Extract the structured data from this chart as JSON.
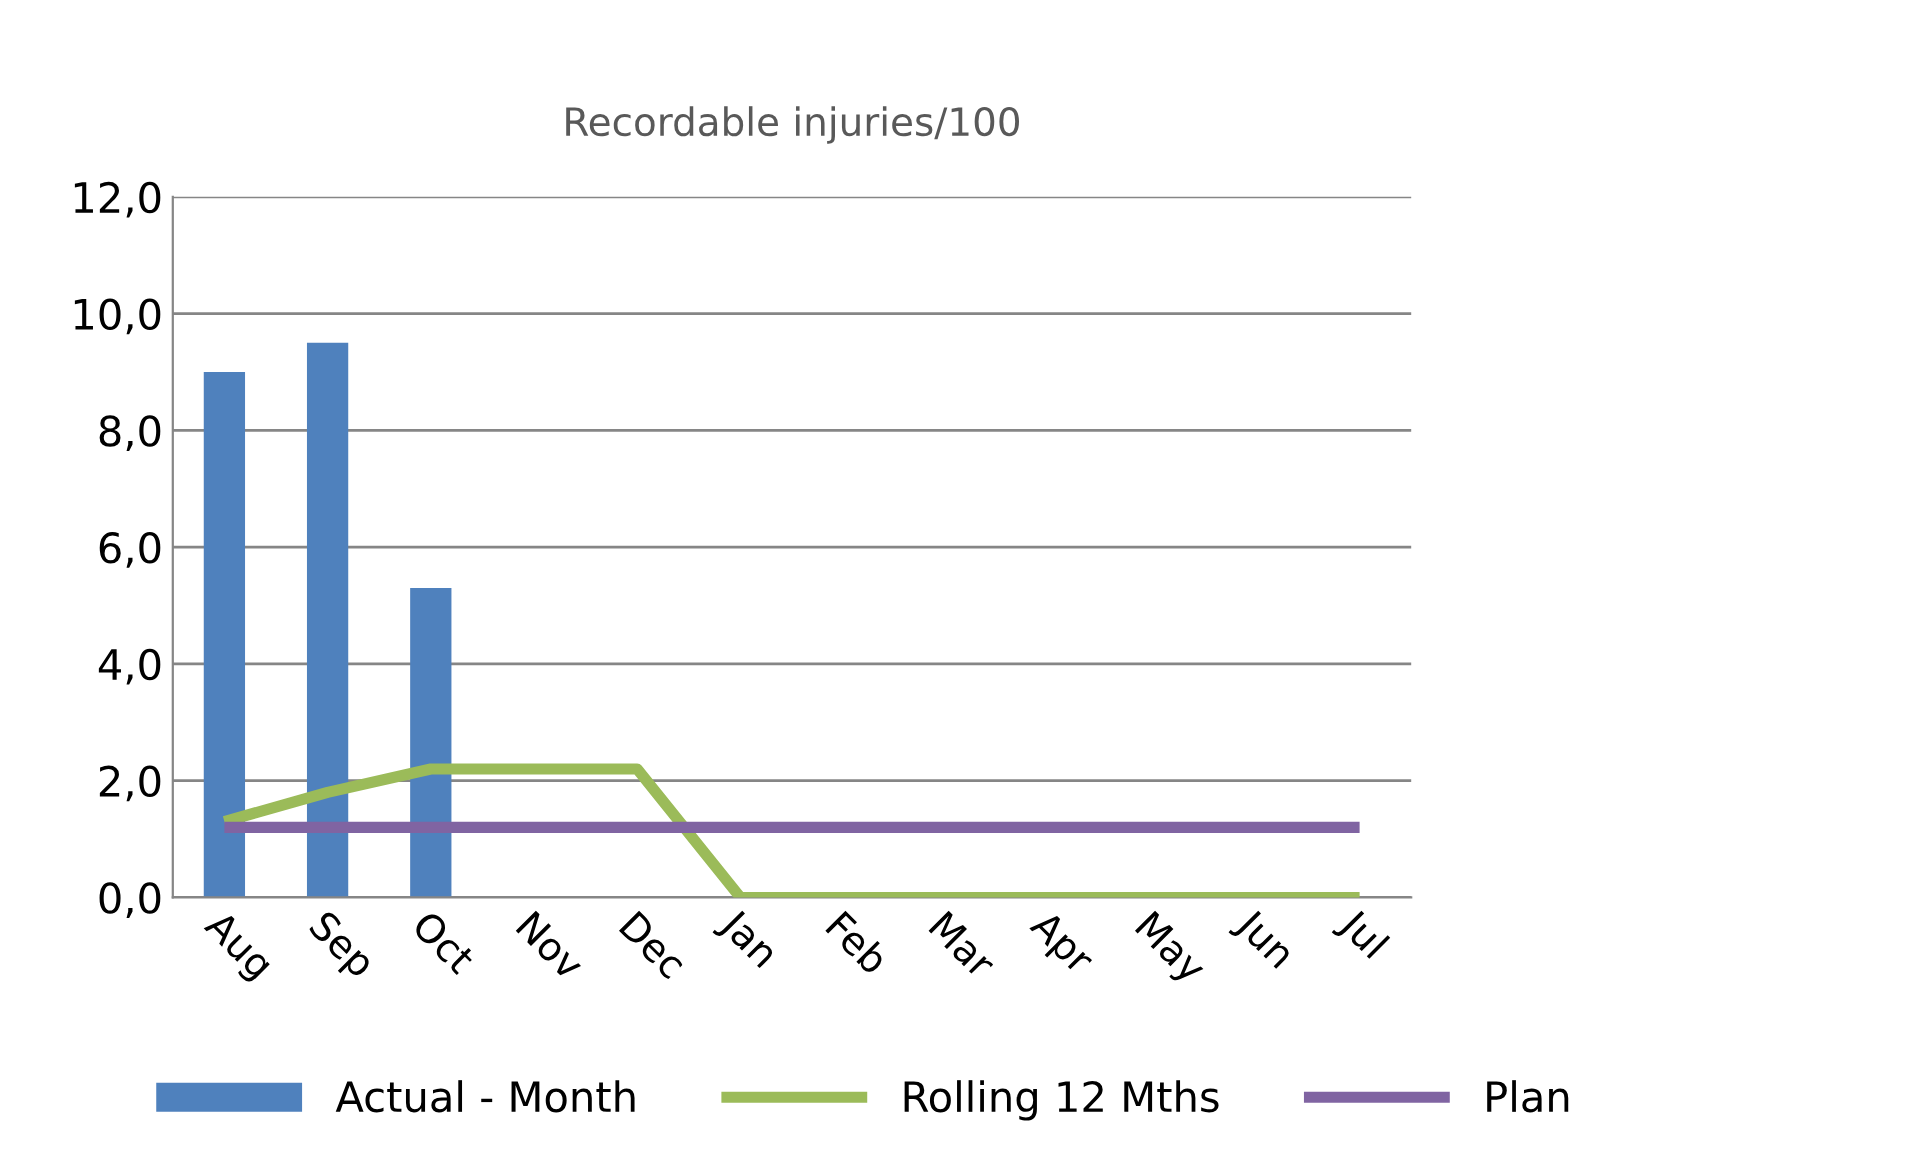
{
  "chart_data": {
    "type": "bar",
    "title": "Recordable injuries/100",
    "categories": [
      "Aug",
      "Sep",
      "Oct",
      "Nov",
      "Dec",
      "Jan",
      "Feb",
      "Mar",
      "Apr",
      "May",
      "Jun",
      "Jul"
    ],
    "series": [
      {
        "name": "Actual - Month",
        "color": "#4f81bd",
        "values": [
          9.0,
          9.5,
          5.3,
          null,
          null,
          null,
          null,
          null,
          null,
          null,
          null,
          null
        ]
      },
      {
        "name": "Rolling 12 Mths",
        "type": "line",
        "color": "#9bbb59",
        "values": [
          1.3,
          1.8,
          2.2,
          2.2,
          2.2,
          0,
          0,
          0,
          0,
          0,
          0,
          0
        ]
      },
      {
        "name": "Plan",
        "type": "line",
        "color": "#8064a2",
        "values": [
          1.2,
          1.2,
          1.2,
          1.2,
          1.2,
          1.2,
          1.2,
          1.2,
          1.2,
          1.2,
          1.2,
          1.2
        ]
      }
    ],
    "ylim": [
      0,
      12
    ],
    "yticks": [
      {
        "value": 0,
        "label": "0,0"
      },
      {
        "value": 2,
        "label": "2,0"
      },
      {
        "value": 4,
        "label": "4,0"
      },
      {
        "value": 6,
        "label": "6,0"
      },
      {
        "value": 8,
        "label": "8,0"
      },
      {
        "value": 10,
        "label": "10,0"
      },
      {
        "value": 12,
        "label": "12,0"
      }
    ],
    "grid": "y",
    "legend": "bottom",
    "marker": "none",
    "line_style": "solid"
  }
}
